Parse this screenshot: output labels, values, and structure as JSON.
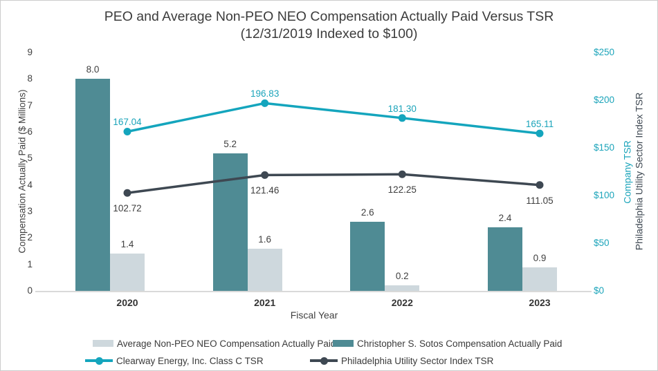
{
  "chart_data": {
    "type": "combo-bar-line",
    "title": "PEO and Average Non-PEO NEO Compensation Actually Paid Versus TSR",
    "subtitle": "(12/31/2019 Indexed to $100)",
    "xlabel": "Fiscal Year",
    "categories": [
      "2020",
      "2021",
      "2022",
      "2023"
    ],
    "left_axis": {
      "label": "Compensation Actually Paid ($ Millions)",
      "min": 0,
      "max": 9,
      "step": 1,
      "ticks": [
        "0",
        "1",
        "2",
        "3",
        "4",
        "5",
        "6",
        "7",
        "8",
        "9"
      ]
    },
    "right_axis": {
      "label_company": "Company TSR",
      "label_index": "Philadelphia Utility Sector Index TSR",
      "min": 0,
      "max": 250,
      "step": 50,
      "ticks": [
        "$0",
        "$50",
        "$100",
        "$150",
        "$200",
        "$250"
      ]
    },
    "grid": "off",
    "legend_position": "bottom",
    "bar_series": [
      {
        "name": "Christopher S. Sotos Compensation Actually Paid",
        "color": "#4f8b94",
        "values": [
          8.0,
          5.2,
          2.6,
          2.4
        ],
        "labels": [
          "8.0",
          "5.2",
          "2.6",
          "2.4"
        ]
      },
      {
        "name": "Average Non-PEO NEO Compensation Actually Paid",
        "color": "#ced8dd",
        "values": [
          1.4,
          1.6,
          0.2,
          0.9
        ],
        "labels": [
          "1.4",
          "1.6",
          "0.2",
          "0.9"
        ]
      }
    ],
    "line_series": [
      {
        "name": "Clearway Energy, Inc. Class C TSR",
        "color": "#14a5bd",
        "label_color": "#1ba4ba",
        "label_position": "above",
        "values": [
          167.04,
          196.83,
          181.3,
          165.11
        ],
        "labels": [
          "167.04",
          "196.83",
          "181.30",
          "165.11"
        ]
      },
      {
        "name": "Philadelphia Utility Sector Index TSR",
        "color": "#3e4852",
        "label_color": "#3d3d3d",
        "label_position": "below",
        "values": [
          102.72,
          121.46,
          122.25,
          111.05
        ],
        "labels": [
          "102.72",
          "121.46",
          "122.25",
          "111.05"
        ]
      }
    ],
    "legend": [
      {
        "label": "Average Non-PEO NEO Compensation Actually Paid",
        "marker": "bar",
        "color": "#ced8dd"
      },
      {
        "label": "Christopher S. Sotos Compensation Actually Paid",
        "marker": "bar",
        "color": "#4f8b94"
      },
      {
        "label": "Clearway Energy, Inc. Class C TSR",
        "marker": "line",
        "color": "#14a5bd"
      },
      {
        "label": "Philadelphia Utility Sector Index TSR",
        "marker": "line",
        "color": "#3e4852"
      }
    ],
    "colors": {
      "peo_bar": "#4f8b94",
      "neo_bar": "#ced8dd",
      "company_tsr_line": "#14a5bd",
      "index_tsr_line": "#3e4852",
      "axis_line": "#d9d9d9",
      "text": "#3f3f3f"
    }
  }
}
